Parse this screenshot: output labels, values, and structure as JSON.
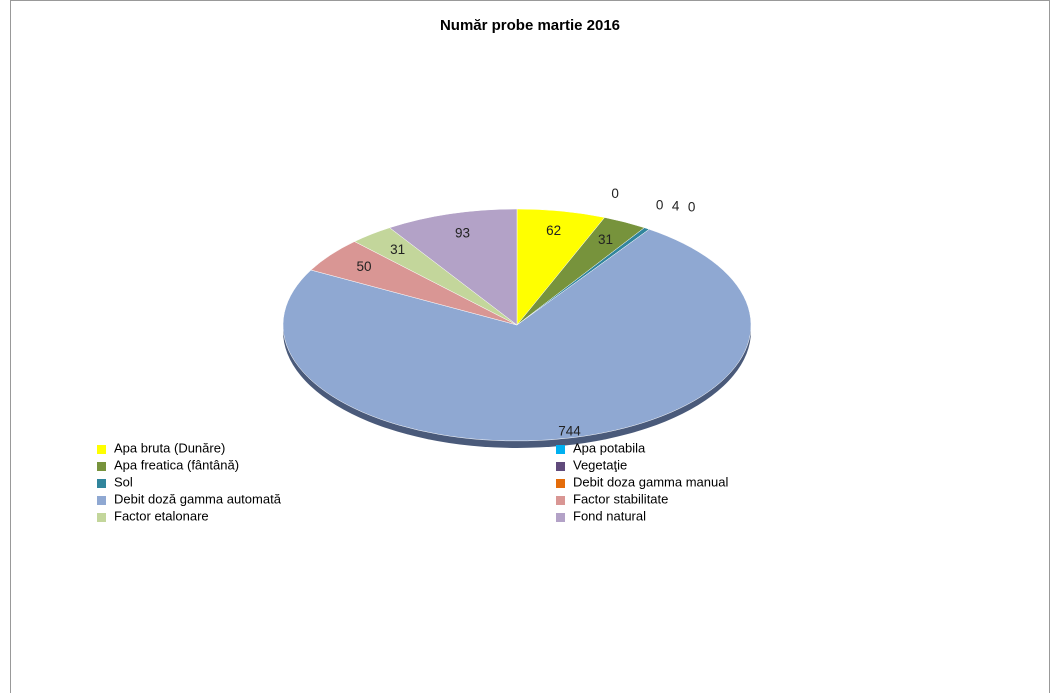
{
  "chart_data": {
    "type": "pie",
    "title": "Număr probe martie  2016",
    "categories": [
      "Apa bruta (Dunăre)",
      "Apa potabila",
      "Apa freatica (fântână)",
      "Vegetaţie",
      "Sol",
      "Debit  doza gamma manual",
      "Debit doză gamma automată",
      "Factor stabilitate",
      "Factor etalonare",
      "Fond natural"
    ],
    "values": [
      62,
      0,
      31,
      0,
      4,
      0,
      744,
      50,
      31,
      93
    ],
    "colors": [
      "#ffff00",
      "#00b0f0",
      "#77933c",
      "#604a7b",
      "#31859c",
      "#e46c0a",
      "#8fa8d2",
      "#d99694",
      "#c3d69b",
      "#b3a2c7"
    ],
    "legend": "bottom-left"
  }
}
